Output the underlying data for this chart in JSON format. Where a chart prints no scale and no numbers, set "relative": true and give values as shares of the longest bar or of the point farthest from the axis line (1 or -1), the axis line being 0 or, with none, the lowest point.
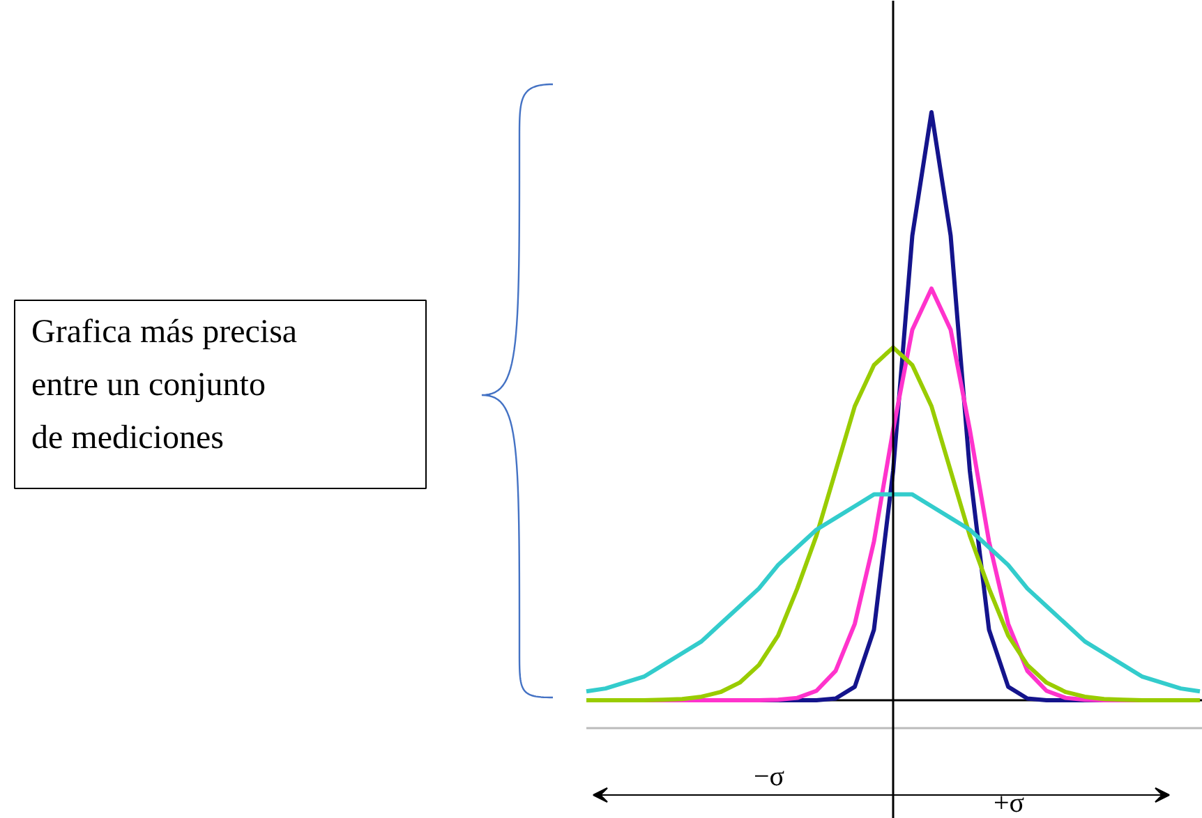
{
  "chart_data": {
    "type": "line",
    "relative": true,
    "grid": false,
    "marker": "none",
    "line_style": "solid",
    "categories": [
      null,
      null,
      null,
      null,
      null,
      null,
      null,
      null,
      null,
      null,
      null,
      null,
      null,
      null,
      null,
      null,
      null,
      null,
      null,
      null,
      null,
      null,
      null,
      null,
      null,
      null,
      null,
      null,
      null,
      null,
      null,
      null,
      null
    ],
    "series": [
      {
        "color": "#14148c",
        "values": [
          null,
          null,
          null,
          null,
          null,
          null,
          null,
          null,
          null,
          0,
          0,
          0,
          0,
          0.003,
          0.023,
          0.12,
          0.39,
          0.79,
          1,
          0.79,
          0.39,
          0.12,
          0.023,
          0.003,
          0,
          0,
          0,
          0,
          null,
          null,
          null,
          null,
          null
        ]
      },
      {
        "color": "#ff33cc",
        "values": [
          null,
          null,
          null,
          0,
          0,
          0,
          0,
          0,
          0,
          0,
          0.001,
          0.004,
          0.016,
          0.05,
          0.13,
          0.27,
          0.46,
          0.63,
          0.7,
          0.63,
          0.46,
          0.27,
          0.13,
          0.05,
          0.016,
          0.004,
          0.001,
          0,
          0,
          0,
          null,
          null,
          null
        ]
      },
      {
        "color": "#99cc00",
        "values": [
          0,
          0,
          0,
          0,
          0.001,
          0.002,
          0.006,
          0.014,
          0.03,
          0.06,
          0.11,
          0.19,
          0.28,
          0.39,
          0.5,
          0.57,
          0.6,
          0.57,
          0.5,
          0.39,
          0.28,
          0.19,
          0.11,
          0.06,
          0.03,
          0.014,
          0.006,
          0.002,
          0.001,
          0,
          0,
          0,
          0
        ]
      },
      {
        "color": "#33cccc",
        "values": [
          0.015,
          0.02,
          0.03,
          0.04,
          0.06,
          0.08,
          0.1,
          0.13,
          0.16,
          0.19,
          0.23,
          0.26,
          0.29,
          0.31,
          0.33,
          0.35,
          0.35,
          0.35,
          0.33,
          0.31,
          0.29,
          0.26,
          0.23,
          0.19,
          0.16,
          0.13,
          0.1,
          0.08,
          0.06,
          0.04,
          0.03,
          0.02,
          0.015
        ]
      }
    ],
    "annotations": [
      "Grafica más precisa\nentre un conjunto\nde mediciones",
      "−σ",
      "+σ"
    ]
  }
}
